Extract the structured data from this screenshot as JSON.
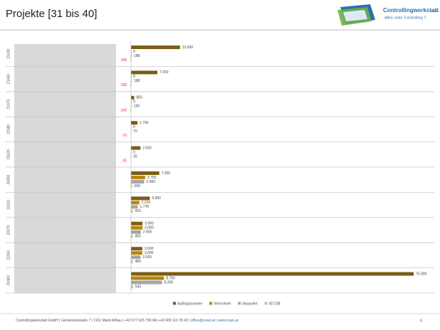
{
  "chart_data": {
    "type": "hbar",
    "title": "Projekte [31 bis 40]",
    "categories": [
      "21430",
      "21460",
      "21470",
      "21580",
      "21620",
      "20050",
      "18110",
      "20370",
      "21150",
      "20483"
    ],
    "xlim": [
      0,
      75000
    ],
    "legend": "bottom",
    "series": [
      {
        "name": "Auftragssumme",
        "color": "#7b5d12",
        "values": [
          13000,
          7000,
          850,
          1700,
          2500,
          7500,
          5000,
          3060,
          3000,
          75000
        ],
        "value_labels": [
          "13.000",
          "7.000",
          "850",
          "1.700",
          "2.500",
          "7.500",
          "5.000",
          "3.060",
          "3.000",
          "75.000"
        ]
      },
      {
        "name": "Verrechnet",
        "color": "#b8860b",
        "values": [
          0,
          0,
          0,
          0,
          0,
          3750,
          2210,
          3060,
          3000,
          8750
        ],
        "value_labels": [
          "0",
          "0",
          "0",
          "0",
          "0",
          "3.750",
          "2.210",
          "3.060",
          "3.000",
          "8.750"
        ]
      },
      {
        "name": "Inkassiert",
        "color": "#a6a6a6",
        "values": [
          188,
          188,
          140,
          70,
          35,
          3483,
          1778,
          2605,
          2520,
          8208
        ],
        "value_labels": [
          "188",
          "188",
          "140",
          "70",
          "35",
          "3.483",
          "1.778",
          "2.605",
          "2.520",
          "8.208"
        ]
      },
      {
        "name": "IST-DB",
        "color": "#a9d18e",
        "values": [
          -188,
          -188,
          -140,
          -70,
          -35,
          268,
          433,
          455,
          480,
          543
        ],
        "value_labels": [
          "-188",
          "-188",
          "-140",
          "-70",
          "-35",
          "268",
          "433",
          "455",
          "480",
          "543"
        ]
      }
    ]
  },
  "logo": {
    "name": "Controllingwerkstatt",
    "suffix": "GmbH",
    "slogan": "Alles unter Controlling ?"
  },
  "footer": {
    "address": "Controllingwerkstatt GmbH | Gemeindestraße 7 | 7411 Markt Allhau | +43 677 625 796 84| +43 680 112 78 43 | ",
    "email": "office@cows.at",
    "separator": " | ",
    "web": "www.cows.at",
    "page": "8"
  }
}
